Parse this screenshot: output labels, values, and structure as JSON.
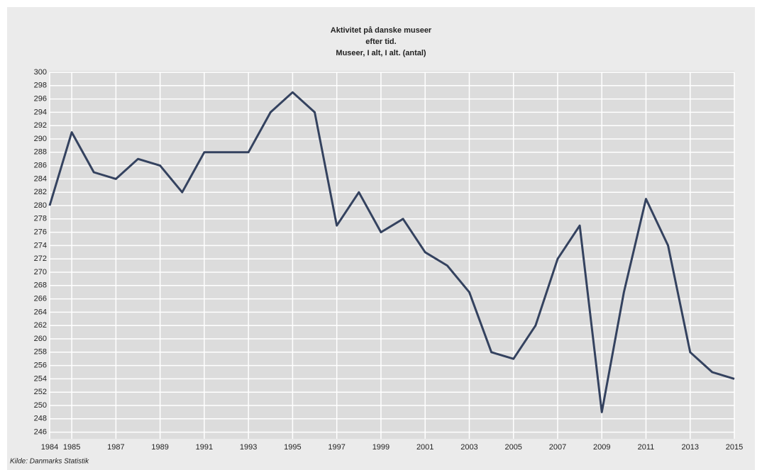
{
  "chart_data": {
    "type": "line",
    "title": [
      "Aktivitet på danske museer",
      "efter tid.",
      "Museer, I alt, I alt. (antal)"
    ],
    "source": "Kilde: Danmarks Statistik",
    "x": [
      1984,
      1985,
      1986,
      1987,
      1988,
      1989,
      1990,
      1991,
      1992,
      1993,
      1994,
      1995,
      1996,
      1997,
      1998,
      1999,
      2000,
      2001,
      2002,
      2003,
      2004,
      2005,
      2006,
      2007,
      2008,
      2009,
      2010,
      2011,
      2012,
      2013,
      2014,
      2015
    ],
    "series": [
      {
        "color": "#34425f",
        "values": [
          280,
          291,
          285,
          284,
          287,
          286,
          282,
          288,
          288,
          288,
          294,
          297,
          294,
          277,
          282,
          276,
          278,
          273,
          271,
          267,
          258,
          257,
          262,
          272,
          277,
          249,
          267,
          281,
          274,
          258,
          255,
          254
        ]
      }
    ],
    "xlim": [
      1984,
      2015
    ],
    "xticks": [
      1984,
      1985,
      1987,
      1989,
      1991,
      1993,
      1995,
      1997,
      1999,
      2001,
      2003,
      2005,
      2007,
      2009,
      2011,
      2013,
      2015
    ],
    "ylim": [
      245,
      300
    ],
    "yticks": [
      246,
      248,
      250,
      252,
      254,
      256,
      258,
      260,
      262,
      264,
      266,
      268,
      270,
      272,
      274,
      276,
      278,
      280,
      282,
      284,
      286,
      288,
      290,
      292,
      294,
      296,
      298,
      300
    ],
    "grid": true
  }
}
